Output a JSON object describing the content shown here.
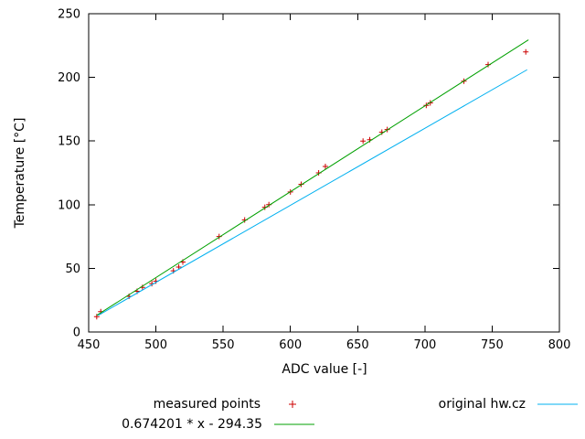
{
  "chart_data": {
    "type": "scatter",
    "title": "",
    "xlabel": "ADC value [-]",
    "ylabel": "Temperature [°C]",
    "xlim": [
      450,
      800
    ],
    "ylim": [
      0,
      250
    ],
    "xticks": [
      450,
      500,
      550,
      600,
      650,
      700,
      750,
      800
    ],
    "yticks": [
      0,
      50,
      100,
      150,
      200,
      250
    ],
    "grid": false,
    "legend_position": "below-plot",
    "frame_color": "#000000",
    "series": [
      {
        "name": "measured points",
        "type": "points",
        "marker": "plus",
        "color": "#cc0000",
        "points": [
          [
            456,
            12
          ],
          [
            459,
            16
          ],
          [
            480,
            28
          ],
          [
            486,
            32
          ],
          [
            490,
            35
          ],
          [
            497,
            38
          ],
          [
            500,
            40
          ],
          [
            513,
            48
          ],
          [
            517,
            51
          ],
          [
            520,
            55
          ],
          [
            547,
            75
          ],
          [
            566,
            88
          ],
          [
            581,
            98
          ],
          [
            584,
            100
          ],
          [
            600,
            110
          ],
          [
            608,
            116
          ],
          [
            621,
            125
          ],
          [
            626,
            130
          ],
          [
            654,
            150
          ],
          [
            659,
            151
          ],
          [
            668,
            157
          ],
          [
            672,
            159
          ],
          [
            701,
            178
          ],
          [
            704,
            180
          ],
          [
            729,
            197
          ],
          [
            747,
            210
          ],
          [
            775,
            220
          ]
        ]
      },
      {
        "name": "0.674201 * x - 294.35",
        "type": "line",
        "color": "#00a000",
        "fit": {
          "slope": 0.674201,
          "intercept": -294.35
        },
        "xrange": [
          456,
          777
        ]
      },
      {
        "name": "original hw.cz",
        "type": "line",
        "color": "#00b0f0",
        "points": [
          [
            457,
            13
          ],
          [
            776,
            206
          ]
        ]
      }
    ]
  }
}
